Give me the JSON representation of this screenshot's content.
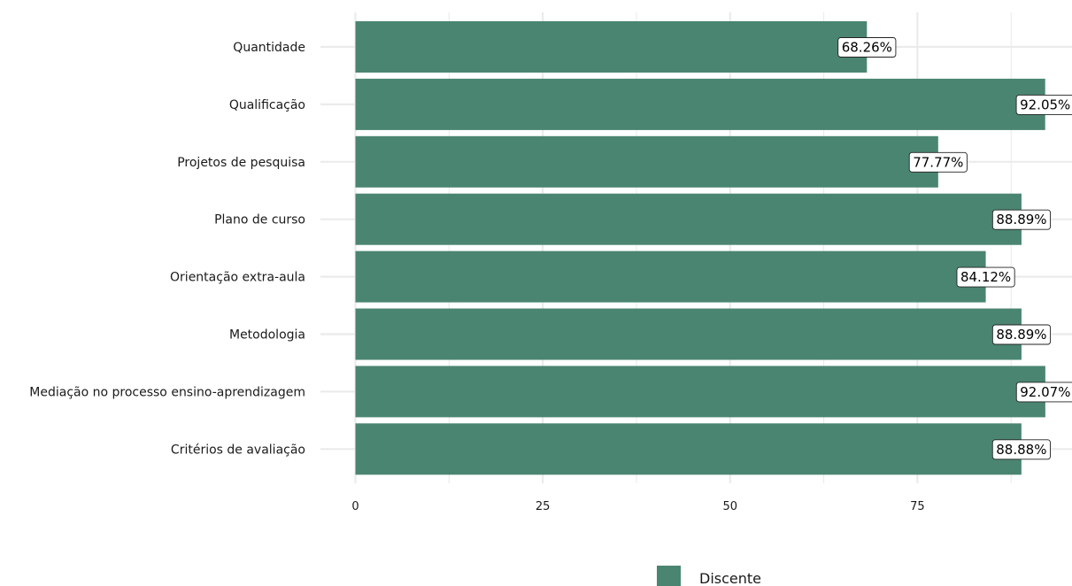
{
  "chart_data": {
    "type": "bar",
    "orientation": "horizontal",
    "categories": [
      "Quantidade",
      "Qualificação",
      "Projetos de pesquisa",
      "Plano de curso",
      "Orientação extra-aula",
      "Metodologia",
      "Mediação no processo ensino-aprendizagem",
      "Critérios de avaliação"
    ],
    "series": [
      {
        "name": "Discente",
        "values": [
          68.26,
          92.05,
          77.77,
          88.89,
          84.12,
          88.89,
          92.07,
          88.88
        ],
        "labels": [
          "68.26%",
          "92.05%",
          "77.77%",
          "88.89%",
          "84.12%",
          "88.89%",
          "92.07%",
          "88.88%"
        ],
        "color": "#4a8571"
      }
    ],
    "x_ticks": [
      "0",
      "25",
      "50",
      "75"
    ],
    "xlim": [
      0,
      92.07
    ],
    "grid": true,
    "legend_position": "bottom",
    "colors": {
      "bar": "#4a8571",
      "grid": "#ebebeb"
    }
  }
}
